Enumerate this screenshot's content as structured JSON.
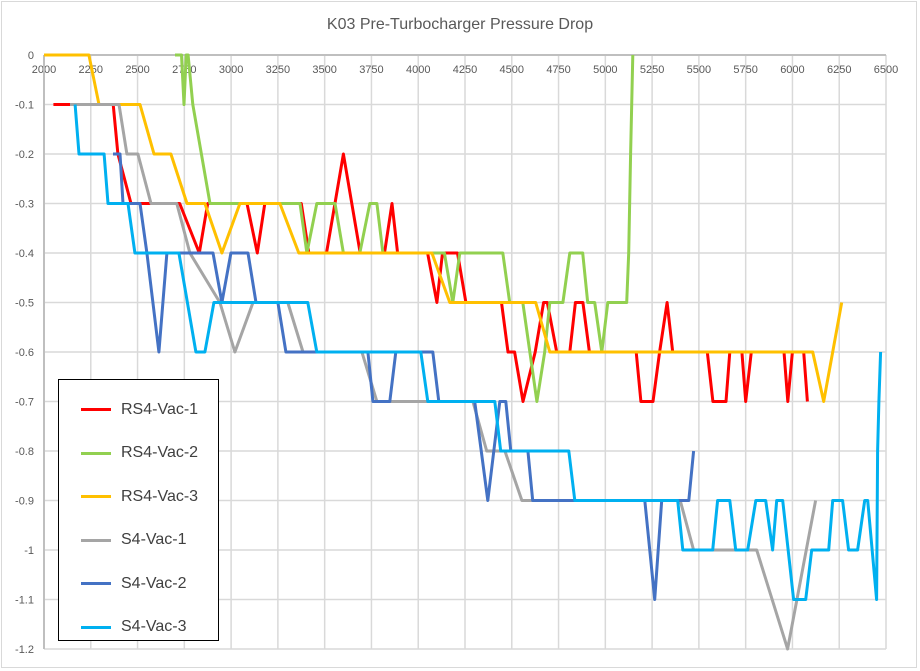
{
  "chart_data": {
    "type": "line",
    "title": "K03 Pre-Turbocharger Pressure Drop",
    "xlabel": "",
    "ylabel": "",
    "xlim": [
      2000,
      6500
    ],
    "ylim": [
      -1.2,
      0
    ],
    "x_ticks": [
      "2000",
      "2250",
      "2500",
      "2750",
      "3000",
      "3250",
      "3500",
      "3750",
      "4000",
      "4250",
      "4500",
      "4750",
      "5000",
      "5250",
      "5500",
      "5750",
      "6000",
      "6250",
      "6500"
    ],
    "y_ticks": [
      "0",
      "-0.1",
      "-0.2",
      "-0.3",
      "-0.4",
      "-0.5",
      "-0.6",
      "-0.7",
      "-0.8",
      "-0.9",
      "-1",
      "-1.1",
      "-1.2"
    ],
    "grid": true,
    "legend_position": "bottom-left",
    "series": [
      {
        "name": "RS4-Vac-1",
        "color": "#FF0000",
        "points": [
          [
            2050,
            -0.1
          ],
          [
            2370,
            -0.1
          ],
          [
            2395,
            -0.2
          ],
          [
            2465,
            -0.3
          ],
          [
            2725,
            -0.3
          ],
          [
            2830,
            -0.4
          ],
          [
            2875,
            -0.3
          ],
          [
            3085,
            -0.3
          ],
          [
            3140,
            -0.4
          ],
          [
            3180,
            -0.3
          ],
          [
            3375,
            -0.3
          ],
          [
            3415,
            -0.4
          ],
          [
            3510,
            -0.4
          ],
          [
            3600,
            -0.2
          ],
          [
            3690,
            -0.4
          ],
          [
            3820,
            -0.4
          ],
          [
            3860,
            -0.3
          ],
          [
            3890,
            -0.4
          ],
          [
            4050,
            -0.4
          ],
          [
            4100,
            -0.5
          ],
          [
            4130,
            -0.4
          ],
          [
            4210,
            -0.4
          ],
          [
            4255,
            -0.5
          ],
          [
            4445,
            -0.5
          ],
          [
            4480,
            -0.6
          ],
          [
            4515,
            -0.6
          ],
          [
            4560,
            -0.7
          ],
          [
            4625,
            -0.6
          ],
          [
            4670,
            -0.5
          ],
          [
            4690,
            -0.5
          ],
          [
            4740,
            -0.6
          ],
          [
            4810,
            -0.6
          ],
          [
            4840,
            -0.5
          ],
          [
            4880,
            -0.5
          ],
          [
            4915,
            -0.6
          ],
          [
            5165,
            -0.6
          ],
          [
            5190,
            -0.7
          ],
          [
            5255,
            -0.7
          ],
          [
            5290,
            -0.6
          ],
          [
            5330,
            -0.5
          ],
          [
            5360,
            -0.6
          ],
          [
            5545,
            -0.6
          ],
          [
            5575,
            -0.7
          ],
          [
            5645,
            -0.7
          ],
          [
            5665,
            -0.6
          ],
          [
            5730,
            -0.6
          ],
          [
            5750,
            -0.7
          ],
          [
            5780,
            -0.6
          ],
          [
            5955,
            -0.6
          ],
          [
            5975,
            -0.7
          ],
          [
            6000,
            -0.6
          ],
          [
            6060,
            -0.6
          ],
          [
            6080,
            -0.7
          ]
        ]
      },
      {
        "name": "RS4-Vac-2",
        "color": "#92D050",
        "points": [
          [
            2700,
            0
          ],
          [
            2735,
            0
          ],
          [
            2748,
            -0.1
          ],
          [
            2760,
            0
          ],
          [
            2770,
            0
          ],
          [
            2795,
            -0.1
          ],
          [
            2887,
            -0.3
          ],
          [
            3368,
            -0.3
          ],
          [
            3405,
            -0.4
          ],
          [
            3458,
            -0.3
          ],
          [
            3555,
            -0.3
          ],
          [
            3600,
            -0.4
          ],
          [
            3688,
            -0.4
          ],
          [
            3741,
            -0.3
          ],
          [
            3779,
            -0.3
          ],
          [
            3811,
            -0.4
          ],
          [
            4140,
            -0.4
          ],
          [
            4185,
            -0.5
          ],
          [
            4222,
            -0.4
          ],
          [
            4452,
            -0.4
          ],
          [
            4489,
            -0.5
          ],
          [
            4559,
            -0.5
          ],
          [
            4634,
            -0.7
          ],
          [
            4676,
            -0.6
          ],
          [
            4703,
            -0.5
          ],
          [
            4773,
            -0.5
          ],
          [
            4810,
            -0.4
          ],
          [
            4879,
            -0.4
          ],
          [
            4906,
            -0.5
          ],
          [
            4943,
            -0.5
          ],
          [
            4981,
            -0.6
          ],
          [
            5013,
            -0.5
          ],
          [
            5114,
            -0.5
          ],
          [
            5125,
            -0.4
          ],
          [
            5135,
            -0.2
          ],
          [
            5147,
            0
          ]
        ]
      },
      {
        "name": "RS4-Vac-3",
        "color": "#FFC000",
        "points": [
          [
            2000,
            0
          ],
          [
            2240,
            0
          ],
          [
            2294,
            -0.1
          ],
          [
            2513,
            -0.1
          ],
          [
            2588,
            -0.2
          ],
          [
            2678,
            -0.2
          ],
          [
            2764,
            -0.3
          ],
          [
            2860,
            -0.3
          ],
          [
            2951,
            -0.4
          ],
          [
            3047,
            -0.3
          ],
          [
            3261,
            -0.3
          ],
          [
            3362,
            -0.4
          ],
          [
            4073,
            -0.4
          ],
          [
            4169,
            -0.5
          ],
          [
            4628,
            -0.5
          ],
          [
            4703,
            -0.6
          ],
          [
            6108,
            -0.6
          ],
          [
            6167,
            -0.7
          ],
          [
            6263,
            -0.5
          ]
        ]
      },
      {
        "name": "S4-Vac-1",
        "color": "#A5A5A5",
        "points": [
          [
            2139,
            -0.1
          ],
          [
            2401,
            -0.1
          ],
          [
            2443,
            -0.2
          ],
          [
            2502,
            -0.2
          ],
          [
            2572,
            -0.3
          ],
          [
            2710,
            -0.3
          ],
          [
            2780,
            -0.4
          ],
          [
            2940,
            -0.5
          ],
          [
            3020,
            -0.6
          ],
          [
            3117,
            -0.5
          ],
          [
            3303,
            -0.5
          ],
          [
            3384,
            -0.6
          ],
          [
            3699,
            -0.6
          ],
          [
            3779,
            -0.7
          ],
          [
            4292,
            -0.7
          ],
          [
            4366,
            -0.8
          ],
          [
            4463,
            -0.8
          ],
          [
            4554,
            -0.9
          ],
          [
            5400,
            -0.9
          ],
          [
            5472,
            -1.0
          ],
          [
            5809,
            -1.0
          ],
          [
            5974,
            -1.2
          ],
          [
            6124,
            -0.9
          ]
        ]
      },
      {
        "name": "S4-Vac-2",
        "color": "#4472C4",
        "points": [
          [
            2369,
            -0.2
          ],
          [
            2406,
            -0.2
          ],
          [
            2422,
            -0.3
          ],
          [
            2513,
            -0.3
          ],
          [
            2550,
            -0.4
          ],
          [
            2614,
            -0.6
          ],
          [
            2657,
            -0.4
          ],
          [
            2903,
            -0.4
          ],
          [
            2951,
            -0.5
          ],
          [
            2999,
            -0.4
          ],
          [
            3090,
            -0.4
          ],
          [
            3133,
            -0.5
          ],
          [
            3250,
            -0.5
          ],
          [
            3293,
            -0.6
          ],
          [
            3731,
            -0.6
          ],
          [
            3758,
            -0.7
          ],
          [
            3848,
            -0.7
          ],
          [
            3880,
            -0.6
          ],
          [
            4078,
            -0.6
          ],
          [
            4110,
            -0.7
          ],
          [
            4302,
            -0.7
          ],
          [
            4372,
            -0.9
          ],
          [
            4436,
            -0.7
          ],
          [
            4468,
            -0.7
          ],
          [
            4495,
            -0.8
          ],
          [
            4586,
            -0.8
          ],
          [
            4612,
            -0.9
          ],
          [
            5211,
            -0.9
          ],
          [
            5264,
            -1.1
          ],
          [
            5301,
            -0.9
          ],
          [
            5446,
            -0.9
          ],
          [
            5472,
            -0.8
          ]
        ]
      },
      {
        "name": "S4-Vac-3",
        "color": "#00B0F0",
        "points": [
          [
            2166,
            -0.1
          ],
          [
            2187,
            -0.2
          ],
          [
            2321,
            -0.2
          ],
          [
            2342,
            -0.3
          ],
          [
            2449,
            -0.3
          ],
          [
            2486,
            -0.4
          ],
          [
            2721,
            -0.4
          ],
          [
            2812,
            -0.6
          ],
          [
            2860,
            -0.6
          ],
          [
            2908,
            -0.5
          ],
          [
            3410,
            -0.5
          ],
          [
            3458,
            -0.6
          ],
          [
            4014,
            -0.6
          ],
          [
            4051,
            -0.7
          ],
          [
            4409,
            -0.7
          ],
          [
            4441,
            -0.8
          ],
          [
            4805,
            -0.8
          ],
          [
            4837,
            -0.9
          ],
          [
            5387,
            -0.9
          ],
          [
            5414,
            -1.0
          ],
          [
            5574,
            -1.0
          ],
          [
            5600,
            -0.9
          ],
          [
            5665,
            -0.9
          ],
          [
            5697,
            -1.0
          ],
          [
            5761,
            -1.0
          ],
          [
            5804,
            -0.9
          ],
          [
            5857,
            -0.9
          ],
          [
            5894,
            -1.0
          ],
          [
            5916,
            -0.9
          ],
          [
            5948,
            -0.9
          ],
          [
            6006,
            -1.1
          ],
          [
            6071,
            -1.1
          ],
          [
            6103,
            -1.0
          ],
          [
            6194,
            -1.0
          ],
          [
            6215,
            -0.9
          ],
          [
            6268,
            -0.9
          ],
          [
            6300,
            -1.0
          ],
          [
            6348,
            -1.0
          ],
          [
            6386,
            -0.9
          ],
          [
            6402,
            -0.9
          ],
          [
            6450,
            -1.1
          ],
          [
            6455,
            -0.8
          ],
          [
            6462,
            -0.7
          ],
          [
            6471,
            -0.6
          ]
        ]
      }
    ]
  }
}
